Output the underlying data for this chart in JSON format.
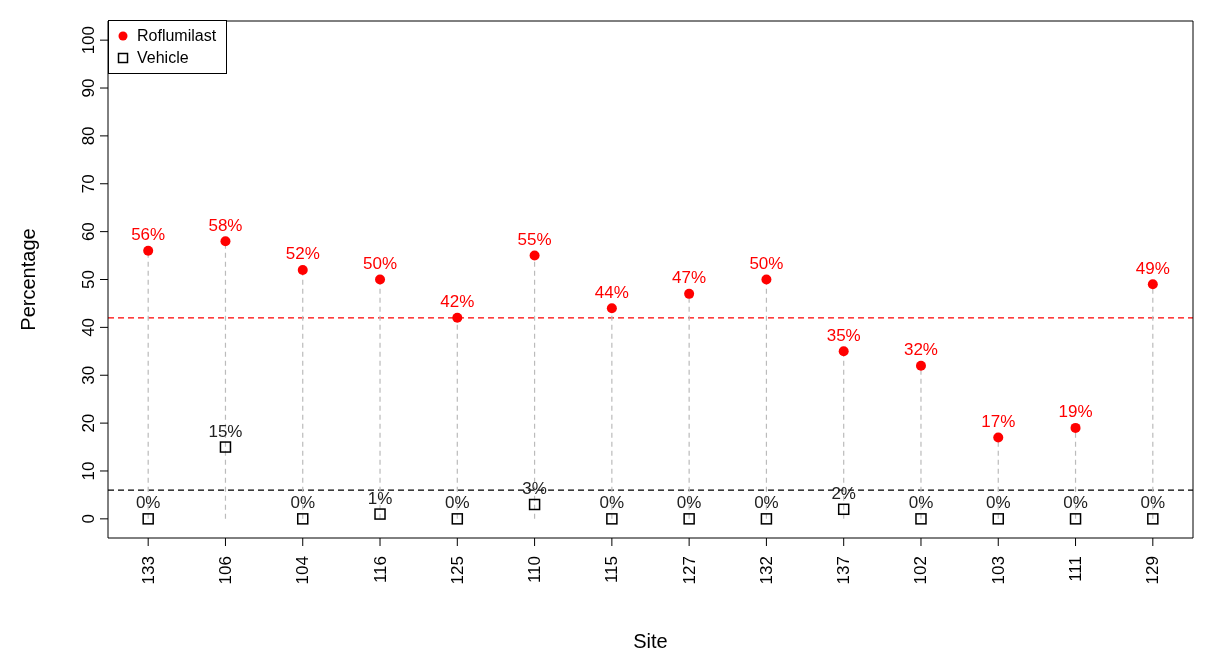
{
  "chart_data": {
    "type": "scatter",
    "xlabel": "Site",
    "ylabel": "Percentage",
    "categories": [
      "133",
      "106",
      "104",
      "116",
      "125",
      "110",
      "115",
      "127",
      "132",
      "137",
      "102",
      "103",
      "111",
      "129"
    ],
    "ylim": [
      -4,
      104
    ],
    "yticks": [
      0,
      10,
      20,
      30,
      40,
      50,
      60,
      70,
      80,
      90,
      100
    ],
    "grid": false,
    "legend": "top left",
    "series": [
      {
        "name": "Roflumilast",
        "type": "lollipop",
        "marker": "circle",
        "color": "#ff0000",
        "values": [
          56,
          58,
          52,
          50,
          42,
          55,
          44,
          47,
          50,
          35,
          32,
          17,
          19,
          49
        ],
        "value_labels": [
          "56%",
          "58%",
          "52%",
          "50%",
          "42%",
          "55%",
          "44%",
          "47%",
          "50%",
          "35%",
          "32%",
          "17%",
          "19%",
          "49%"
        ]
      },
      {
        "name": "Vehicle",
        "marker": "square",
        "color": "#000000",
        "values": [
          0,
          15,
          0,
          1,
          0,
          3,
          0,
          0,
          0,
          2,
          0,
          0,
          0,
          0
        ],
        "value_labels": [
          "0%",
          "15%",
          "0%",
          "1%",
          "0%",
          "3%",
          "0%",
          "0%",
          "0%",
          "2%",
          "0%",
          "0%",
          "0%",
          "0%"
        ]
      }
    ],
    "ref_lines": [
      {
        "axis": "y",
        "value": 42,
        "color": "#ff0000",
        "line_style": "dashed"
      },
      {
        "axis": "y",
        "value": 6,
        "color": "#000000",
        "line_style": "dashed"
      }
    ]
  }
}
